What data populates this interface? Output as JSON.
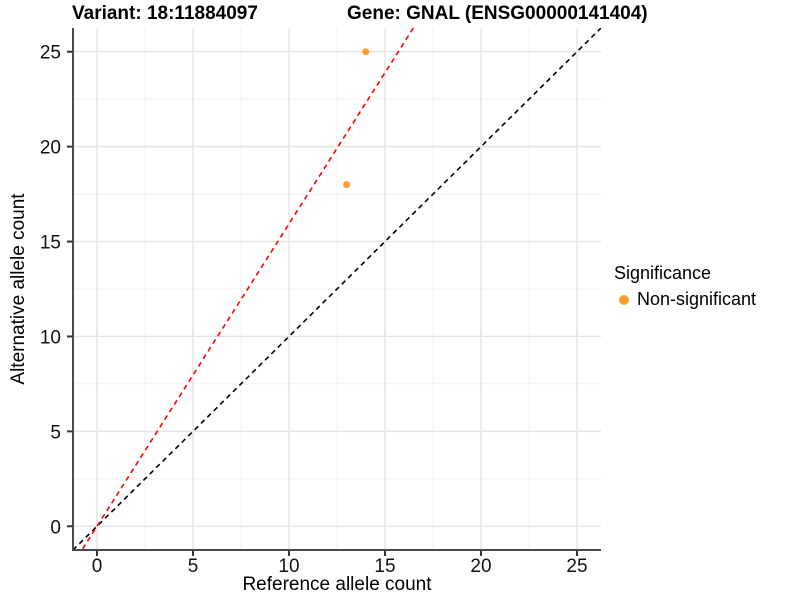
{
  "title": {
    "variant": "Variant: 18:11884097",
    "gene": "Gene: GNAL (ENSG00000141404)"
  },
  "axes": {
    "x_label": "Reference allele count",
    "y_label": "Alternative allele count"
  },
  "legend": {
    "title": "Significance",
    "items": [
      {
        "label": "Non-significant",
        "color": "#F9A02C"
      }
    ]
  },
  "chart_data": {
    "type": "scatter",
    "title": "Variant: 18:11884097   Gene: GNAL (ENSG00000141404)",
    "xlabel": "Reference allele count",
    "ylabel": "Alternative allele count",
    "xlim": [
      -1.25,
      26.25
    ],
    "ylim": [
      -1.25,
      26.25
    ],
    "major_breaks": [
      0,
      5,
      10,
      15,
      20,
      25
    ],
    "minor_breaks": [
      2.5,
      7.5,
      12.5,
      17.5,
      22.5
    ],
    "grid": true,
    "legend_position": "right",
    "series": [
      {
        "name": "Non-significant",
        "color": "#F9A02C",
        "points": [
          {
            "x": 13,
            "y": 18
          },
          {
            "x": 14,
            "y": 25
          }
        ]
      }
    ],
    "lines": [
      {
        "name": "identity-line",
        "slope": 1.0,
        "intercept": 0,
        "color": "#000000",
        "dashed": true
      },
      {
        "name": "fitted-ratio-line",
        "slope": 1.593,
        "intercept": 0,
        "color": "#FF0000",
        "dashed": true
      }
    ],
    "style": {
      "major_grid_color": "#E4E4E4",
      "minor_grid_color": "#F1F1F1",
      "axis_line_color": "#4a4a4a",
      "tick_color": "#333333",
      "text_color": "#111111"
    }
  }
}
